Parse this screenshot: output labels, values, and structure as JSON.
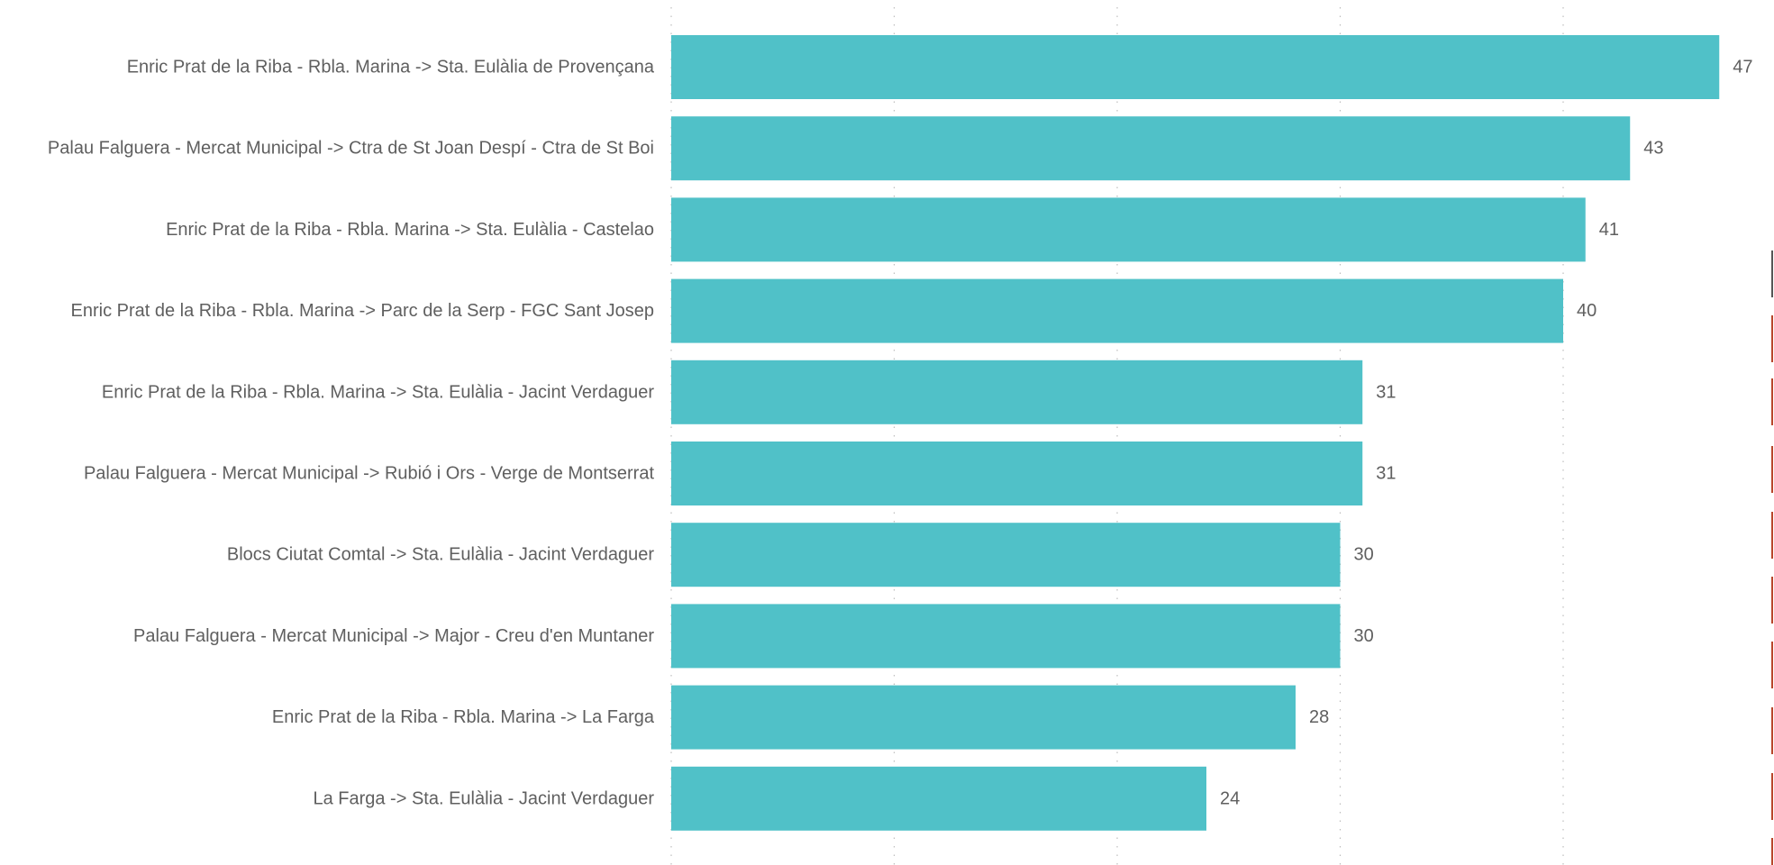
{
  "chart_data": {
    "type": "bar",
    "orientation": "horizontal",
    "categories": [
      "Enric Prat de la Riba - Rbla. Marina -> Sta. Eulàlia de Provençana",
      "Palau Falguera - Mercat Municipal -> Ctra de St Joan Despí - Ctra de St Boi",
      "Enric Prat de la Riba - Rbla. Marina -> Sta. Eulàlia - Castelao",
      "Enric Prat de la Riba - Rbla. Marina -> Parc de la Serp - FGC Sant Josep",
      "Enric Prat de la Riba - Rbla. Marina -> Sta. Eulàlia - Jacint Verdaguer",
      "Palau Falguera - Mercat Municipal -> Rubió i Ors - Verge de Montserrat",
      "Blocs Ciutat Comtal -> Sta. Eulàlia - Jacint Verdaguer",
      "Palau Falguera - Mercat Municipal -> Major - Creu d'en Muntaner",
      "Enric Prat de la Riba - Rbla. Marina -> La Farga",
      "La Farga -> Sta. Eulàlia - Jacint Verdaguer"
    ],
    "values": [
      47,
      43,
      41,
      40,
      31,
      31,
      30,
      30,
      28,
      24
    ],
    "xlim": [
      0,
      47
    ],
    "grid_step": 10,
    "grid": true,
    "data_labels": true,
    "bar_color": "#50c1c8",
    "text_color": "#5f5f5f",
    "grid_color": "#bdbdbd",
    "edge_mark_colors": [
      "#555555",
      "#b8452a"
    ]
  }
}
